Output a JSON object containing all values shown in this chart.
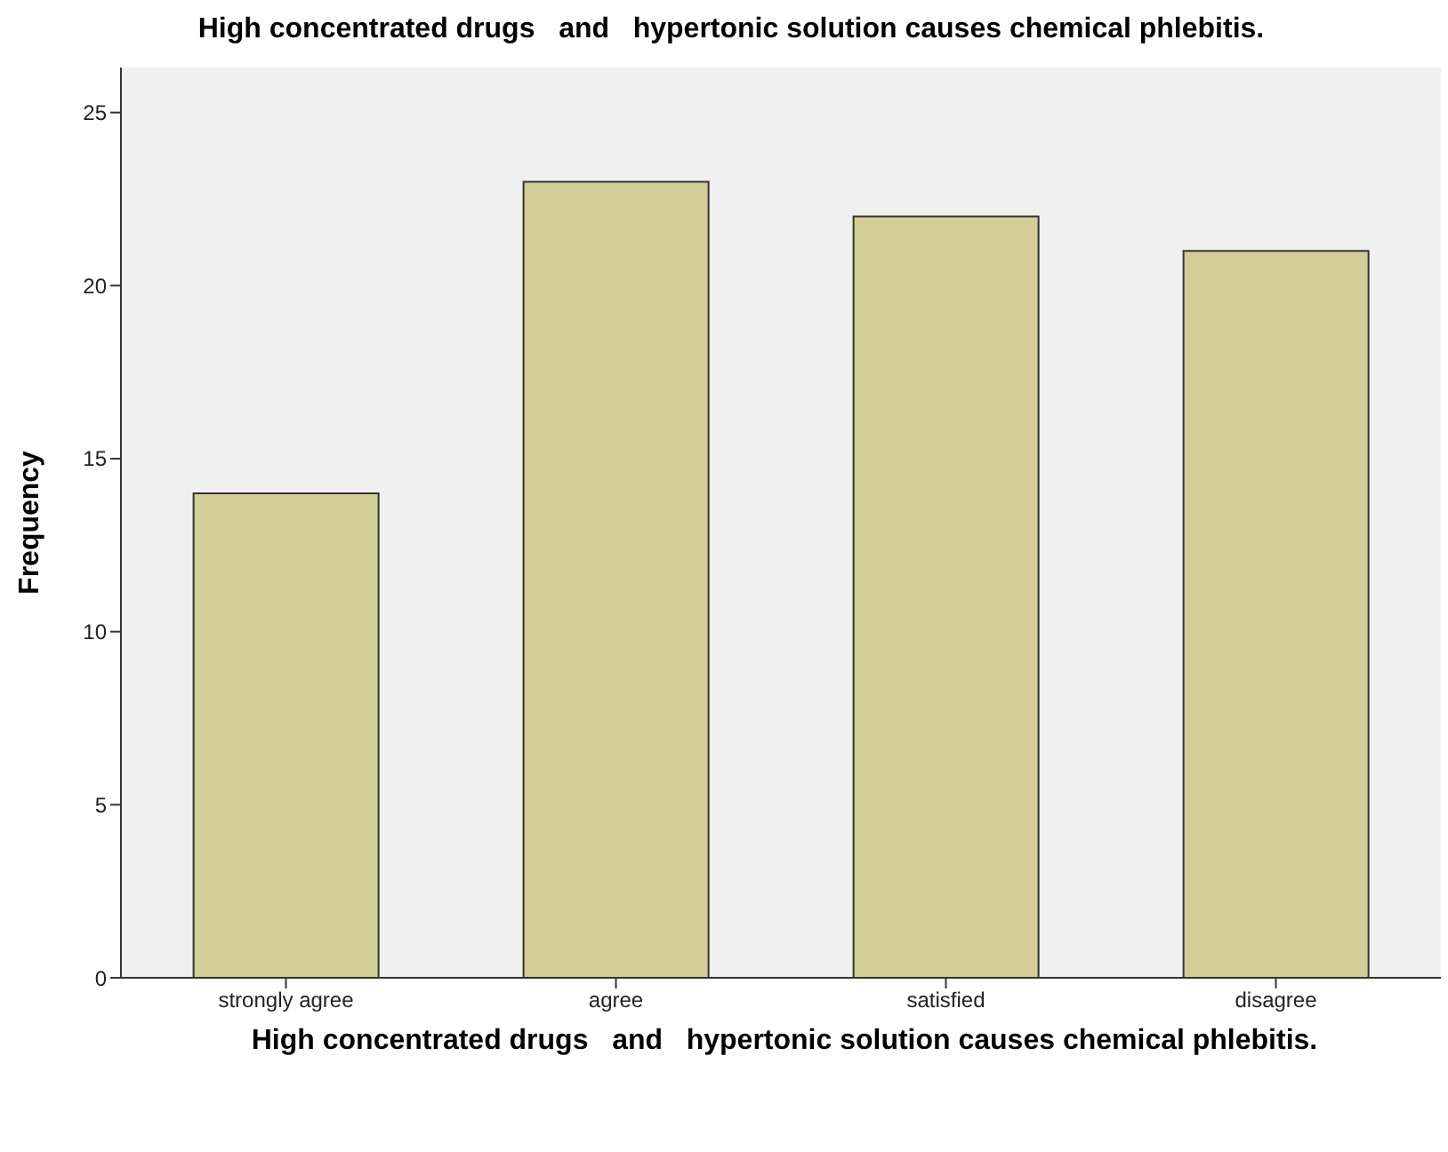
{
  "chart_data": {
    "type": "bar",
    "title": "High concentrated drugs   and   hypertonic solution causes chemical phlebitis.",
    "xlabel": "High concentrated drugs   and   hypertonic solution causes chemical phlebitis.",
    "ylabel": "Frequency",
    "categories": [
      "strongly agree",
      "agree",
      "satisfied",
      "disagree"
    ],
    "values": [
      14,
      23,
      22,
      21
    ],
    "color": "#d3ce97",
    "ylim": [
      0,
      26.3
    ],
    "yticks": [
      0,
      5,
      10,
      15,
      20,
      25
    ]
  }
}
